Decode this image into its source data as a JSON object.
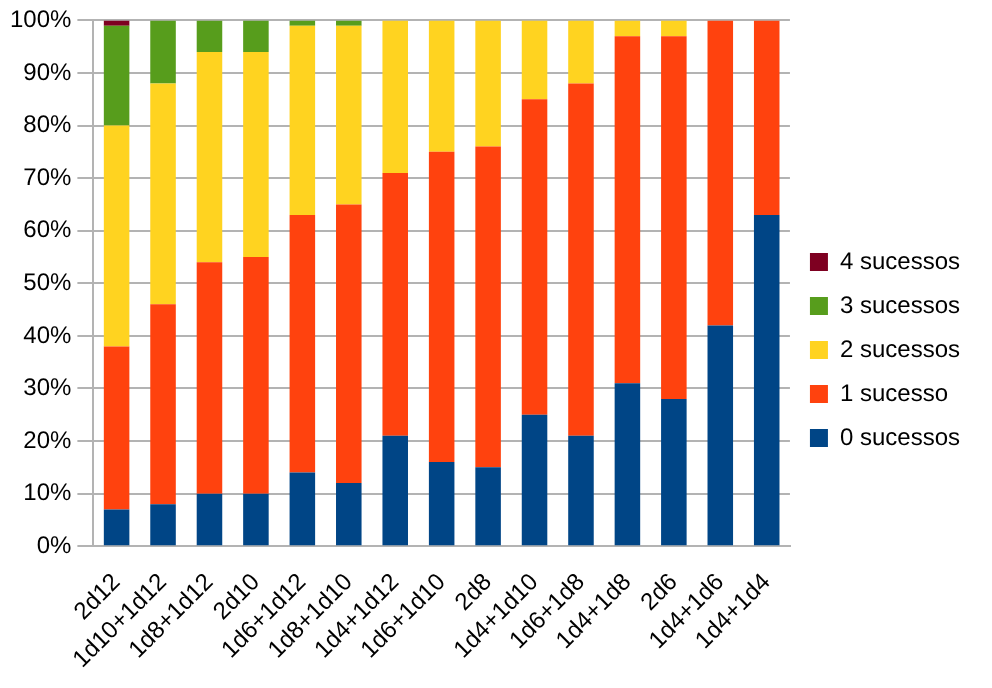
{
  "chart_data": {
    "type": "bar",
    "stacked": true,
    "categories": [
      "2d12",
      "1d10+1d12",
      "1d8+1d12",
      "2d10",
      "1d6+1d12",
      "1d8+1d10",
      "1d4+1d12",
      "1d6+1d10",
      "2d8",
      "1d4+1d10",
      "1d6+1d8",
      "1d4+1d8",
      "2d6",
      "1d4+1d6",
      "1d4+1d4"
    ],
    "series": [
      {
        "name": "0 sucessos",
        "color": "#004586",
        "values": [
          7,
          8,
          10,
          10,
          14,
          12,
          21,
          16,
          15,
          25,
          21,
          31,
          28,
          42,
          63
        ]
      },
      {
        "name": "1 sucesso",
        "color": "#ff420e",
        "values": [
          31,
          38,
          44,
          45,
          49,
          53,
          50,
          59,
          61,
          60,
          67,
          66,
          69,
          58,
          37
        ]
      },
      {
        "name": "2 sucessos",
        "color": "#ffd320",
        "values": [
          42,
          42,
          40,
          39,
          36,
          34,
          29,
          25,
          24,
          15,
          12,
          3,
          3,
          0,
          0
        ]
      },
      {
        "name": "3 sucessos",
        "color": "#579d1c",
        "values": [
          19,
          12,
          6,
          6,
          1,
          1,
          0,
          0,
          0,
          0,
          0,
          0,
          0,
          0,
          0
        ]
      },
      {
        "name": "4 sucessos",
        "color": "#7e0021",
        "values": [
          1,
          0,
          0,
          0,
          0,
          0,
          0,
          0,
          0,
          0,
          0,
          0,
          0,
          0,
          0
        ]
      }
    ],
    "ylim": [
      0,
      100
    ],
    "yticks": [
      {
        "value": 0,
        "label": "0%"
      },
      {
        "value": 10,
        "label": "10%"
      },
      {
        "value": 20,
        "label": "20%"
      },
      {
        "value": 30,
        "label": "30%"
      },
      {
        "value": 40,
        "label": "40%"
      },
      {
        "value": 50,
        "label": "50%"
      },
      {
        "value": 60,
        "label": "60%"
      },
      {
        "value": 70,
        "label": "70%"
      },
      {
        "value": 80,
        "label": "80%"
      },
      {
        "value": 90,
        "label": "90%"
      },
      {
        "value": 100,
        "label": "100%"
      }
    ],
    "grid": "y",
    "legend": "right"
  }
}
